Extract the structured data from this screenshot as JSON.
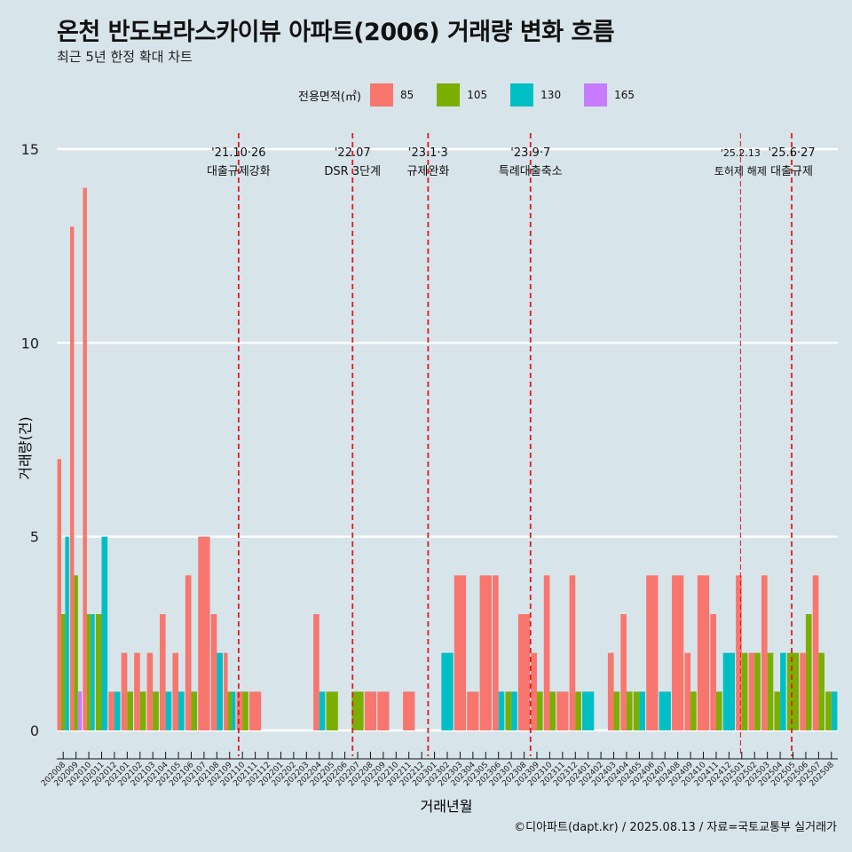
{
  "title": "온천 반도보라스카이뷰 아파트(2006) 거래량 변화 흐름",
  "subtitle": "최근 5년 한정 확대 차트",
  "caption": "©디아파트(dapt.kr) / 2025.08.13 / 자료=국토교통부 실거래가",
  "colors": {
    "background": "#d7e4ea",
    "grid": "#ffffff",
    "vline": "#e41a1c"
  },
  "chart_data": {
    "type": "bar",
    "xlabel": "거래년월",
    "ylabel": "거래량(건)",
    "ylim": [
      0,
      15
    ],
    "yticks": [
      0,
      5,
      10,
      15
    ],
    "legend_title": "전용면적(㎡)",
    "legend_position": "top",
    "grid": "horizontal",
    "categories": [
      "202008",
      "202009",
      "202010",
      "202011",
      "202012",
      "202101",
      "202102",
      "202103",
      "202104",
      "202105",
      "202106",
      "202107",
      "202108",
      "202109",
      "202110",
      "202111",
      "202112",
      "202201",
      "202202",
      "202203",
      "202204",
      "202205",
      "202206",
      "202207",
      "202208",
      "202209",
      "202210",
      "202211",
      "202212",
      "202301",
      "202302",
      "202303",
      "202304",
      "202305",
      "202306",
      "202307",
      "202308",
      "202309",
      "202310",
      "202311",
      "202312",
      "202401",
      "202402",
      "202403",
      "202404",
      "202405",
      "202406",
      "202407",
      "202408",
      "202409",
      "202410",
      "202411",
      "202412",
      "202501",
      "202502",
      "202503",
      "202504",
      "202505",
      "202506",
      "202507",
      "202508"
    ],
    "series": [
      {
        "name": "85",
        "color": "#f8766d",
        "values": [
          7,
          13,
          14,
          0,
          1,
          2,
          2,
          2,
          3,
          2,
          4,
          5,
          3,
          2,
          1,
          1,
          0,
          0,
          0,
          0,
          3,
          0,
          0,
          0,
          1,
          1,
          0,
          1,
          0,
          0,
          0,
          4,
          1,
          4,
          4,
          0,
          3,
          2,
          4,
          1,
          4,
          0,
          0,
          2,
          3,
          0,
          4,
          0,
          4,
          2,
          4,
          3,
          0,
          4,
          2,
          4,
          0,
          0,
          2,
          4,
          0
        ]
      },
      {
        "name": "105",
        "color": "#7cae00",
        "values": [
          3,
          4,
          3,
          3,
          0,
          1,
          1,
          1,
          0,
          0,
          1,
          0,
          0,
          1,
          1,
          0,
          0,
          0,
          0,
          0,
          0,
          1,
          0,
          1,
          0,
          0,
          0,
          0,
          0,
          0,
          0,
          0,
          0,
          0,
          0,
          1,
          0,
          1,
          1,
          0,
          1,
          0,
          0,
          1,
          1,
          1,
          0,
          0,
          0,
          1,
          0,
          1,
          0,
          2,
          2,
          2,
          1,
          2,
          3,
          2,
          1
        ]
      },
      {
        "name": "130",
        "color": "#00bfc4",
        "values": [
          5,
          0,
          3,
          5,
          1,
          0,
          0,
          0,
          1,
          1,
          0,
          0,
          2,
          1,
          0,
          0,
          0,
          0,
          0,
          0,
          1,
          0,
          0,
          0,
          0,
          0,
          0,
          0,
          0,
          0,
          2,
          0,
          0,
          0,
          1,
          1,
          0,
          0,
          0,
          0,
          0,
          1,
          0,
          0,
          0,
          1,
          0,
          1,
          0,
          0,
          0,
          0,
          2,
          0,
          0,
          0,
          2,
          0,
          0,
          0,
          1
        ]
      },
      {
        "name": "165",
        "color": "#c77cff",
        "values": [
          0,
          1,
          0,
          0,
          0,
          0,
          0,
          0,
          0,
          0,
          0,
          0,
          0,
          0,
          0,
          0,
          0,
          0,
          0,
          0,
          0,
          0,
          0,
          0,
          0,
          0,
          0,
          0,
          0,
          0,
          0,
          0,
          0,
          0,
          0,
          0,
          0,
          0,
          0,
          0,
          0,
          0,
          0,
          0,
          0,
          0,
          0,
          0,
          0,
          0,
          0,
          0,
          0,
          0,
          0,
          0,
          0,
          0,
          0,
          0,
          0
        ]
      }
    ],
    "events": [
      {
        "x": 14.2,
        "date": "'21.10·26",
        "label": "대출규제강화",
        "style": "dashed"
      },
      {
        "x": 23.1,
        "date": "'22.07",
        "label": "DSR 3단계",
        "style": "dashed"
      },
      {
        "x": 29.0,
        "date": "'23.1·3",
        "label": "규제완화",
        "style": "dashed"
      },
      {
        "x": 37.0,
        "date": "'23.9·7",
        "label": "특례대출축소",
        "style": "dashed"
      },
      {
        "x": 53.4,
        "date": "'25.2.13",
        "label": "토허제 해제",
        "style": "thin"
      },
      {
        "x": 57.4,
        "date": "'25.6·27",
        "label": "대출규제",
        "style": "dashed"
      }
    ]
  }
}
